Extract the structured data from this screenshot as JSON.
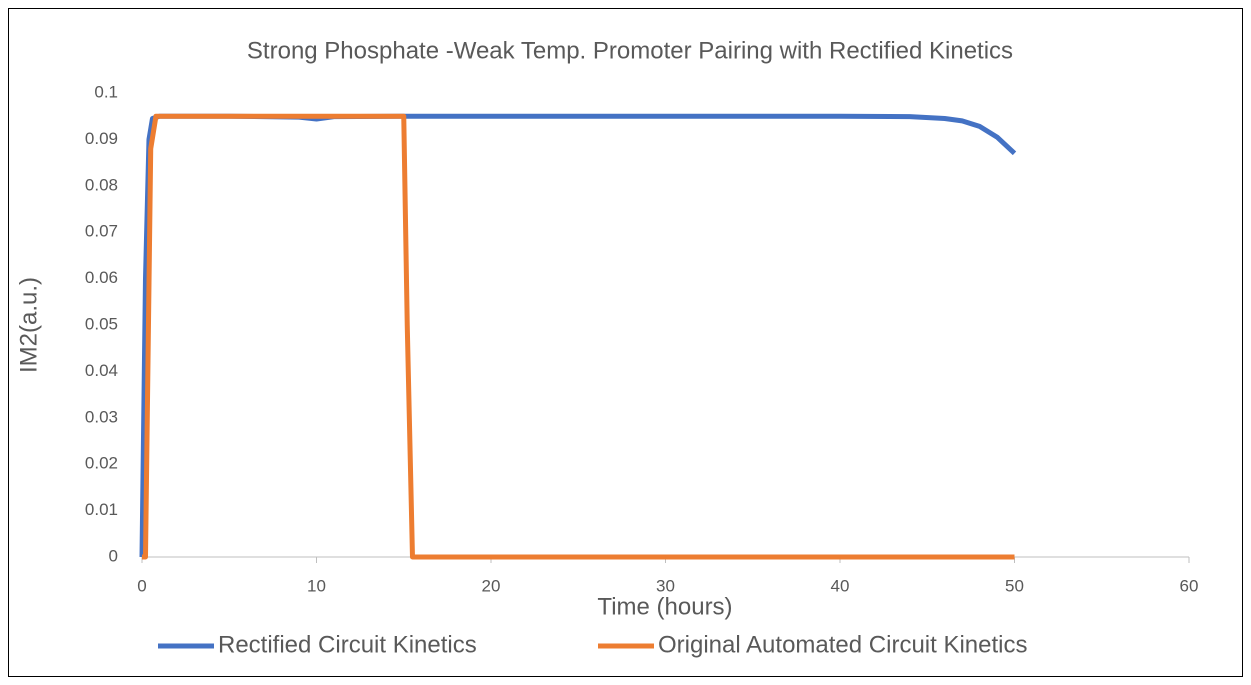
{
  "chart_data": {
    "type": "line",
    "title": "Strong Phosphate -Weak Temp. Promoter Pairing with Rectified Kinetics",
    "x_label": "Time (hours)",
    "y_label": "IM2(a.u.)",
    "series": [
      {
        "name": "Rectified Circuit Kinetics",
        "color": "#4472c4",
        "x": [
          0,
          0.2,
          0.4,
          0.6,
          1,
          5,
          9,
          10,
          11,
          15,
          20,
          30,
          40,
          44,
          46,
          47,
          48,
          49,
          50
        ],
        "values": [
          0,
          0.06,
          0.09,
          0.0945,
          0.095,
          0.095,
          0.0948,
          0.0944,
          0.0949,
          0.095,
          0.095,
          0.095,
          0.095,
          0.0949,
          0.0945,
          0.094,
          0.0928,
          0.0905,
          0.087
        ]
      },
      {
        "name": "Original Automated Circuit Kinetics",
        "color": "#ed7d31",
        "x": [
          0,
          0.2,
          0.5,
          0.8,
          5,
          10,
          15,
          15.2,
          15.5,
          20,
          30,
          40,
          50
        ],
        "values": [
          0,
          0,
          0.088,
          0.095,
          0.095,
          0.095,
          0.095,
          0.05,
          0,
          0,
          0,
          0,
          0
        ]
      }
    ],
    "xlim": [
      0,
      60
    ],
    "xticks": [
      0,
      10,
      20,
      30,
      40,
      50,
      60
    ],
    "ylim": [
      0,
      0.1
    ],
    "yticks": [
      0,
      0.01,
      0.02,
      0.03,
      0.04,
      0.05,
      0.06,
      0.07,
      0.08,
      0.09,
      0.1
    ],
    "grid": false,
    "legend": "bottom"
  }
}
